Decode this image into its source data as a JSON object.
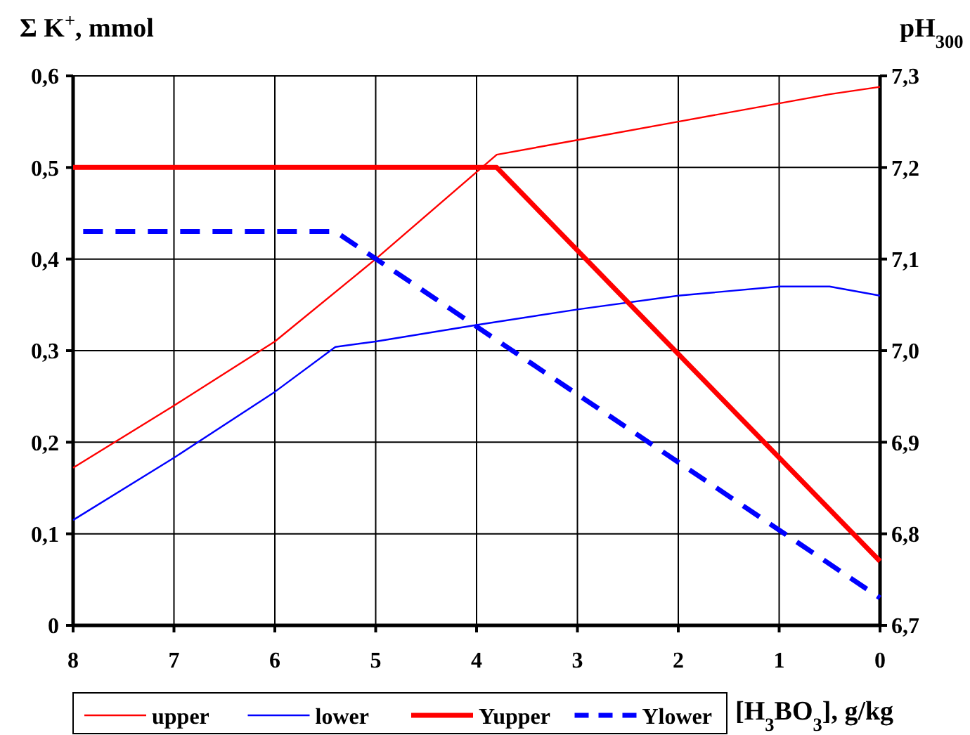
{
  "chart_data": {
    "type": "line",
    "ylabel": "Σ K$^{+}$, mmol",
    "y2label": "pH$_{300}$",
    "xlabel": "[H$_{3}$BO$_{3}$], g/kg",
    "xlim": [
      8,
      0
    ],
    "xticks": [
      8,
      7,
      6,
      5,
      4,
      3,
      2,
      1,
      0
    ],
    "ylim": [
      0,
      0.6
    ],
    "yticks": [
      0,
      {
        "value": 0.1,
        "label": "0,1"
      },
      {
        "value": 0.2,
        "label": "0,2"
      },
      {
        "value": 0.3,
        "label": "0,3"
      },
      {
        "value": 0.4,
        "label": "0,4"
      },
      {
        "value": 0.5,
        "label": "0,5"
      },
      {
        "value": 0.6,
        "label": "0,6"
      }
    ],
    "y2lim": [
      6.7,
      7.3
    ],
    "y2ticks": [
      {
        "value": 6.7,
        "label": "6,7"
      },
      {
        "value": 6.8,
        "label": "6,8"
      },
      {
        "value": 6.9,
        "label": "6,9"
      },
      {
        "value": 7.0,
        "label": "7,0"
      },
      {
        "value": 7.1,
        "label": "7,1"
      },
      {
        "value": 7.2,
        "label": "7,2"
      },
      {
        "value": 7.3,
        "label": "7,3"
      }
    ],
    "grid": true,
    "legend": "bottom",
    "series": [
      {
        "name": "upper",
        "color": "#ff0000",
        "x": [
          8,
          7,
          6,
          5,
          3.8,
          3,
          2,
          1,
          0.5,
          0
        ],
        "values": [
          0.172,
          0.24,
          0.31,
          0.4,
          0.514,
          0.53,
          0.55,
          0.57,
          0.58,
          0.588
        ]
      },
      {
        "name": "lower",
        "color": "#0000ff",
        "x": [
          8,
          7,
          6,
          5.4,
          5,
          4,
          3,
          2,
          1,
          0.5,
          0
        ],
        "values": [
          0.115,
          0.183,
          0.255,
          0.304,
          0.31,
          0.328,
          0.345,
          0.36,
          0.37,
          0.37,
          0.36
        ]
      },
      {
        "name": "Yupper",
        "color": "#ff0000",
        "axis": "y2",
        "x": [
          8,
          3.8,
          0
        ],
        "values": [
          7.2,
          7.2,
          6.77
        ]
      },
      {
        "name": "Ylower",
        "color": "#0000ff",
        "axis": "y2",
        "line_style": "dashed",
        "x": [
          7.9,
          5.4,
          0
        ],
        "values": [
          7.13,
          7.13,
          6.73
        ]
      }
    ]
  }
}
